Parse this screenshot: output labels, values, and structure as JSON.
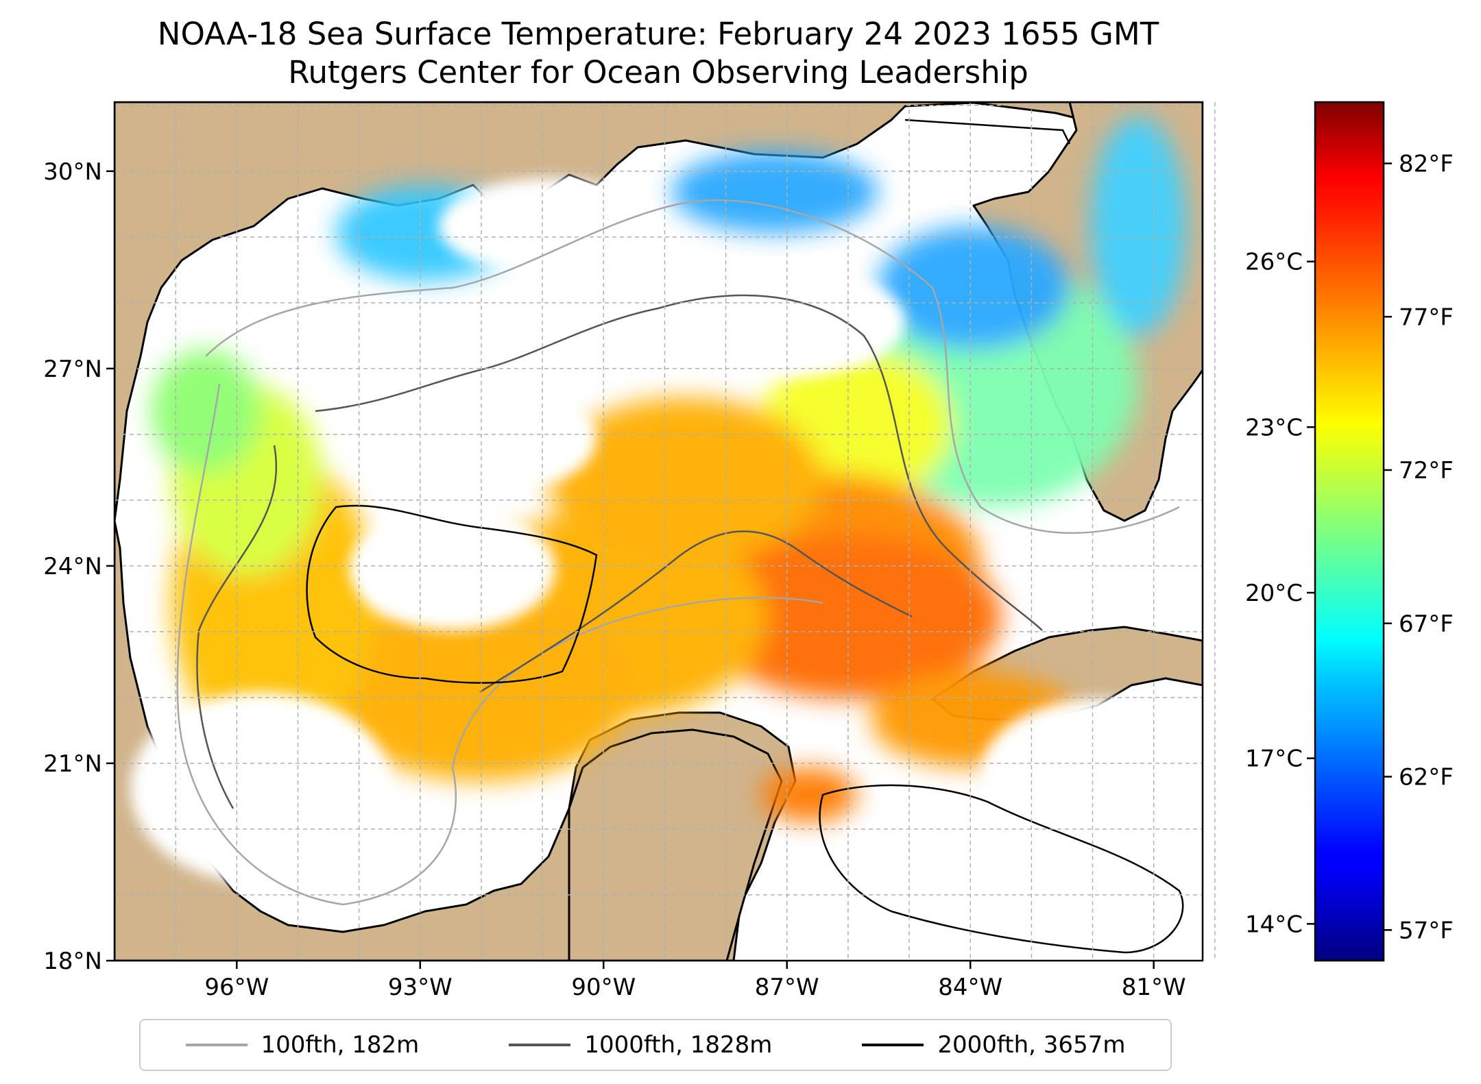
{
  "title": "NOAA-18 Sea Surface Temperature: February 24 2023 1655 GMT",
  "subtitle": "Rutgers Center for Ocean Observing Leadership",
  "map": {
    "lon_range": [
      -98,
      -80.2
    ],
    "lat_range": [
      18,
      31.05
    ],
    "lat_ticks": [
      {
        "value": 30,
        "label": "30°N"
      },
      {
        "value": 27,
        "label": "27°N"
      },
      {
        "value": 24,
        "label": "24°N"
      },
      {
        "value": 21,
        "label": "21°N"
      },
      {
        "value": 18,
        "label": "18°N"
      }
    ],
    "lon_ticks": [
      {
        "value": -96,
        "label": "96°W"
      },
      {
        "value": -93,
        "label": "93°W"
      },
      {
        "value": -90,
        "label": "90°W"
      },
      {
        "value": -87,
        "label": "87°W"
      },
      {
        "value": -84,
        "label": "84°W"
      },
      {
        "value": -81,
        "label": "81°W"
      }
    ],
    "gridlines": true,
    "land_color": "#d0b48c",
    "water_color": "#ffffff"
  },
  "colorbar": {
    "colormap": "jet",
    "celsius_ticks": [
      {
        "value": 26,
        "label": "26°C"
      },
      {
        "value": 23,
        "label": "23°C"
      },
      {
        "value": 20,
        "label": "20°C"
      },
      {
        "value": 17,
        "label": "17°C"
      },
      {
        "value": 14,
        "label": "14°C"
      }
    ],
    "fahrenheit_ticks": [
      {
        "value": 82,
        "label": "82°F"
      },
      {
        "value": 77,
        "label": "77°F"
      },
      {
        "value": 72,
        "label": "72°F"
      },
      {
        "value": 67,
        "label": "67°F"
      },
      {
        "value": 62,
        "label": "62°F"
      },
      {
        "value": 57,
        "label": "57°F"
      }
    ],
    "range_f": [
      56,
      84
    ]
  },
  "legend": {
    "placement": "bottom-center",
    "items": [
      {
        "label": "100fth, 182m",
        "color": "#a6a6a6"
      },
      {
        "label": "1000fth, 1828m",
        "color": "#555555"
      },
      {
        "label": "2000fth, 3657m",
        "color": "#000000"
      }
    ]
  }
}
